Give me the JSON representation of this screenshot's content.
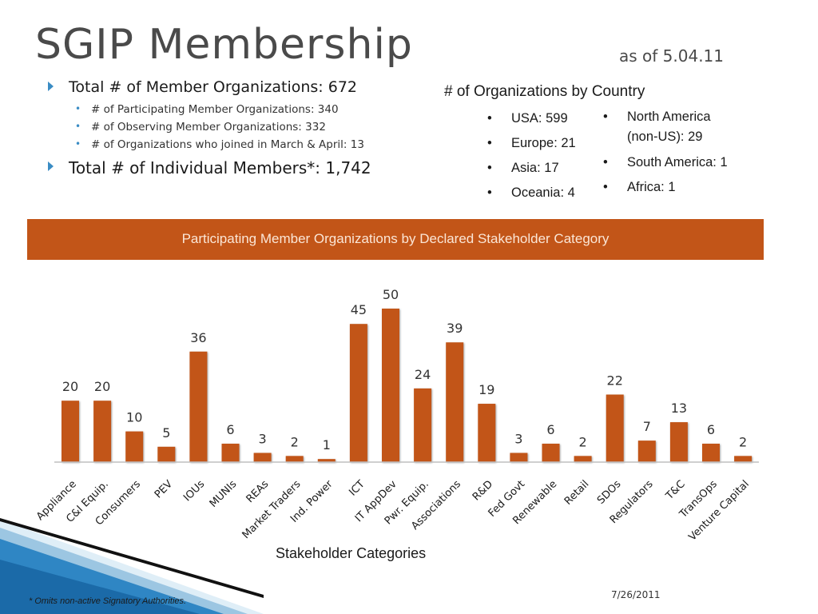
{
  "slide": {
    "title": "SGIP Membership",
    "as_of": "as of 5.04.11",
    "footnote": "* Omits non-active Signatory Authorities.",
    "date": "7/26/2011"
  },
  "bullets": {
    "total_orgs": "Total # of Member Organizations: 672",
    "participating": "# of Participating Member Organizations: 340",
    "observing": "# of Observing Member Organizations: 332",
    "joined": "# of Organizations who joined in March & April: 13",
    "individuals": "Total # of Individual Members*: 1,742"
  },
  "countries": {
    "title": "# of Organizations by Country",
    "col1": [
      "USA: 599",
      "Europe: 21",
      "Asia: 17",
      "Oceania: 4"
    ],
    "col2": [
      "North America",
      "(non-US): 29",
      "South America: 1",
      "Africa: 1"
    ]
  },
  "chart_data": {
    "type": "bar",
    "title": "Participating Member Organizations by Declared Stakeholder Category",
    "xlabel": "Stakeholder Categories",
    "ylabel": "",
    "bar_color": "#c25518",
    "banner_color": "#c25518",
    "categories": [
      "Appliance",
      "C&I Equip.",
      "Consumers",
      "PEV",
      "IOUs",
      "MUNIs",
      "REAs",
      "Market Traders",
      "Ind. Power",
      "ICT",
      "IT AppDev",
      "Pwr. Equip.",
      "Associations",
      "R&D",
      "Fed Govt",
      "Renewable",
      "Retail",
      "SDOs",
      "Regulators",
      "T&C",
      "TransOps",
      "Venture Capital"
    ],
    "values": [
      20,
      20,
      10,
      5,
      36,
      6,
      3,
      2,
      1,
      45,
      50,
      24,
      39,
      19,
      3,
      6,
      2,
      22,
      7,
      13,
      6,
      2
    ],
    "ylim": [
      0,
      50
    ],
    "grid": false
  }
}
